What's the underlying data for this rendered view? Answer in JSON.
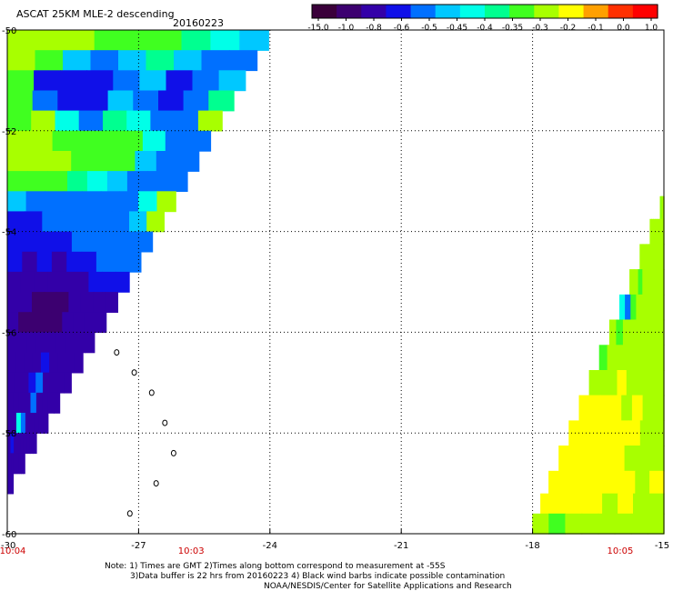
{
  "header": {
    "title": "ASCAT 25KM MLE-2 descending",
    "date": "20160223"
  },
  "colorbar": {
    "tick_labels": [
      "-15.0",
      "-1.0",
      "-0.8",
      "-0.6",
      "-0.5",
      "-0.45",
      "-0.4",
      "-0.35",
      "-0.3",
      "-0.2",
      "-0.1",
      "0.0",
      "1.0"
    ],
    "stops": [
      "#3a003a",
      "#3c0070",
      "#3300a8",
      "#1010e8",
      "#0070ff",
      "#00c8ff",
      "#00ffe8",
      "#00ff90",
      "#40ff20",
      "#a8ff00",
      "#ffff00",
      "#ffa000",
      "#ff3000",
      "#ff0000"
    ]
  },
  "chart_data": {
    "type": "heatmap",
    "title": "ASCAT 25KM MLE-2 descending",
    "subtitle": "20160223",
    "x_ticks": [
      "-27",
      "-24",
      "-21",
      "-18",
      "-15"
    ],
    "x_tick_values": [
      -27,
      -24,
      -21,
      -18,
      -15
    ],
    "y_ticks": [
      "-50",
      "-52",
      "-54",
      "-56",
      "-58",
      "-60"
    ],
    "y_tick_values": [
      -50,
      -52,
      -54,
      -56,
      -58,
      -60
    ],
    "x_range": [
      -30,
      -15
    ],
    "y_range": [
      -60,
      -50
    ],
    "grid": true,
    "x_corner_label": "-30",
    "time_labels": [
      {
        "label": "10:04",
        "lon": -30
      },
      {
        "label": "10:03",
        "lon": -25.8
      },
      {
        "label": "10:05",
        "lon": -16
      }
    ],
    "swath_west": {
      "lon_edge_top": -23.9,
      "lat_top": -50,
      "lat_bottom": -59.2,
      "lon_edge_bottom": -30,
      "rows": [
        {
          "lat": -50.2,
          "levels": [
            "-0.3",
            "-0.3",
            "-0.3",
            "-0.35",
            "-0.35",
            "-0.35",
            "-0.4",
            "-0.45",
            "-0.5"
          ]
        },
        {
          "lat": -50.6,
          "levels": [
            "-0.3",
            "-0.35",
            "-0.5",
            "-0.6",
            "-0.5",
            "-0.4",
            "-0.5",
            "-0.6",
            "-0.6"
          ]
        },
        {
          "lat": -51.0,
          "levels": [
            "-0.35",
            "-0.8",
            "-0.8",
            "-0.8",
            "-0.6",
            "-0.5",
            "-0.8",
            "-0.6",
            "-0.5"
          ]
        },
        {
          "lat": -51.4,
          "levels": [
            "-0.35",
            "-0.6",
            "-0.8",
            "-0.8",
            "-0.5",
            "-0.6",
            "-0.8",
            "-0.6",
            "-0.4"
          ]
        },
        {
          "lat": -51.8,
          "levels": [
            "-0.35",
            "-0.3",
            "-0.45",
            "-0.6",
            "-0.4",
            "-0.45",
            "-0.6",
            "-0.6",
            "-0.3"
          ]
        },
        {
          "lat": -52.2,
          "levels": [
            "-0.3",
            "-0.3",
            "-0.35",
            "-0.35",
            "-0.35",
            "-0.35",
            "-0.45",
            "-0.6",
            "-0.6"
          ]
        },
        {
          "lat": -52.6,
          "levels": [
            "-0.3",
            "-0.3",
            "-0.3",
            "-0.35",
            "-0.35",
            "-0.35",
            "-0.5",
            "-0.6",
            "-0.6"
          ]
        },
        {
          "lat": -53.0,
          "levels": [
            "-0.35",
            "-0.35",
            "-0.35",
            "-0.4",
            "-0.45",
            "-0.5",
            "-0.6",
            "-0.6",
            "-0.6"
          ]
        },
        {
          "lat": -53.4,
          "levels": [
            "-0.5",
            "-0.6",
            "-0.6",
            "-0.6",
            "-0.6",
            "-0.6",
            "-0.6",
            "-0.45",
            "-0.3"
          ]
        },
        {
          "lat": -53.8,
          "levels": [
            "-0.8",
            "-0.8",
            "-0.6",
            "-0.6",
            "-0.6",
            "-0.6",
            "-0.6",
            "-0.5",
            "-0.3"
          ]
        },
        {
          "lat": -54.2,
          "levels": [
            "-0.8",
            "-0.8",
            "-0.8",
            "-0.8",
            "-0.6",
            "-0.6",
            "-0.6",
            "-0.6",
            "-0.6"
          ]
        },
        {
          "lat": -54.6,
          "levels": [
            "-0.8",
            "-1.0",
            "-0.8",
            "-1.0",
            "-0.8",
            "-0.8",
            "-0.6",
            "-0.6",
            "-0.6"
          ]
        },
        {
          "lat": -55.0,
          "levels": [
            "-1.0",
            "-1.0",
            "-1.0",
            "-1.0",
            "-1.0",
            "-1.0",
            "-0.8",
            "-0.8",
            "-0.8"
          ]
        },
        {
          "lat": -55.4,
          "levels": [
            "-1.0",
            "-1.0",
            "-15.0",
            "-15.0",
            "-15.0",
            "-1.0",
            "-1.0",
            "-1.0",
            "-1.0"
          ]
        },
        {
          "lat": -55.8,
          "levels": [
            "-1.0",
            "-15.0",
            "-15.0",
            "-15.0",
            "-15.0",
            "-1.0",
            "-1.0",
            "-1.0",
            "-1.0"
          ]
        },
        {
          "lat": -56.2,
          "levels": [
            "-1.0",
            "-1.0",
            "-1.0",
            "-1.0",
            "-1.0",
            "-1.0",
            "-1.0",
            "-1.0",
            "-1.0"
          ]
        },
        {
          "lat": -56.6,
          "levels": [
            "-1.0",
            "-1.0",
            "-1.0",
            "-1.0",
            "-0.8",
            "-1.0",
            "-1.0",
            "-1.0",
            "-1.0"
          ]
        },
        {
          "lat": -57.0,
          "levels": [
            "-1.0",
            "-1.0",
            "-1.0",
            "-0.8",
            "-0.6",
            "-1.0",
            "-1.0",
            "-1.0",
            "-1.0"
          ]
        },
        {
          "lat": -57.4,
          "levels": [
            "-1.0",
            "-1.0",
            "-1.0",
            "-1.0",
            "-0.6",
            "-1.0",
            "-1.0",
            "-1.0",
            "-1.0"
          ]
        },
        {
          "lat": -57.8,
          "levels": [
            "-1.0",
            "-1.0",
            "-0.45",
            "-0.6",
            "-1.0",
            "-1.0",
            "-1.0",
            "-1.0",
            "-1.0"
          ]
        },
        {
          "lat": -58.2,
          "levels": [
            "-1.0",
            "-0.8",
            "-1.0",
            "-1.0",
            "-1.0",
            "-1.0",
            "-1.0",
            "-1.0",
            "-1.0"
          ]
        },
        {
          "lat": -58.6,
          "levels": [
            "-1.0",
            "-1.0",
            "-1.0",
            "-1.0",
            "-1.0",
            "-1.0",
            "-1.0",
            "-1.0",
            "-1.0"
          ]
        },
        {
          "lat": -59.0,
          "levels": [
            "-1.0",
            "-1.0",
            "-1.0",
            "-1.0",
            "-1.0",
            "-1.0",
            "-1.0",
            "-1.0",
            "-1.0"
          ]
        }
      ]
    },
    "swath_east": {
      "lon_edge_top": -15,
      "lat_top": -53.3,
      "lat_bottom": -60,
      "lon_edge_bottom": -18.1,
      "rows": [
        {
          "lat": -53.5,
          "levels": [
            "-0.3",
            "-0.3",
            "-0.35",
            "-0.3",
            "-0.3",
            "-0.3",
            "-0.3",
            "-0.3"
          ]
        },
        {
          "lat": -54.0,
          "levels": [
            "-0.3",
            "-0.3",
            "-0.3",
            "-0.3",
            "-0.3",
            "-0.3",
            "-0.3",
            "-0.3"
          ]
        },
        {
          "lat": -54.5,
          "levels": [
            "-0.3",
            "-0.3",
            "-0.3",
            "-0.3",
            "-0.3",
            "-0.3",
            "-0.3",
            "-0.3"
          ]
        },
        {
          "lat": -55.0,
          "levels": [
            "-0.3",
            "-0.3",
            "-0.35",
            "-0.3",
            "-0.3",
            "-0.3",
            "-0.3",
            "-0.3"
          ]
        },
        {
          "lat": -55.5,
          "levels": [
            "-0.45",
            "-0.6",
            "-0.35",
            "-0.3",
            "-0.3",
            "-0.3",
            "-0.3",
            "-0.3"
          ]
        },
        {
          "lat": -56.0,
          "levels": [
            "-0.3",
            "-0.35",
            "-0.3",
            "-0.3",
            "-0.3",
            "-0.3",
            "-0.3",
            "-0.3"
          ]
        },
        {
          "lat": -56.5,
          "levels": [
            "-0.35",
            "-0.3",
            "-0.3",
            "-0.3",
            "-0.3",
            "-0.3",
            "-0.3",
            "-0.3"
          ]
        },
        {
          "lat": -57.0,
          "levels": [
            "-0.3",
            "-0.3",
            "-0.3",
            "-0.2",
            "-0.3",
            "-0.3",
            "-0.3",
            "-0.3"
          ]
        },
        {
          "lat": -57.5,
          "levels": [
            "-0.2",
            "-0.2",
            "-0.2",
            "-0.2",
            "-0.3",
            "-0.2",
            "-0.3",
            "-0.3"
          ]
        },
        {
          "lat": -58.0,
          "levels": [
            "-0.2",
            "-0.2",
            "-0.2",
            "-0.2",
            "-0.2",
            "-0.2",
            "-0.3",
            "-0.3"
          ]
        },
        {
          "lat": -58.5,
          "levels": [
            "-0.2",
            "-0.2",
            "-0.2",
            "-0.2",
            "-0.2",
            "-0.3",
            "-0.3",
            "-0.3"
          ]
        },
        {
          "lat": -59.0,
          "levels": [
            "-0.2",
            "-0.2",
            "-0.2",
            "-0.2",
            "-0.2",
            "-0.2",
            "-0.3",
            "-0.2"
          ]
        },
        {
          "lat": -59.4,
          "levels": [
            "-0.2",
            "-0.2",
            "-0.2",
            "-0.2",
            "-0.3",
            "-0.2",
            "-0.3",
            "-0.3"
          ]
        },
        {
          "lat": -59.8,
          "levels": [
            "-0.3",
            "-0.35",
            "-0.3",
            "-0.3",
            "-0.3",
            "-0.3",
            "-0.3",
            "-0.3"
          ]
        }
      ]
    },
    "islands": [
      {
        "lon": -27.5,
        "lat": -56.4
      },
      {
        "lon": -27.1,
        "lat": -56.8
      },
      {
        "lon": -26.7,
        "lat": -57.2
      },
      {
        "lon": -26.4,
        "lat": -57.8
      },
      {
        "lon": -26.2,
        "lat": -58.4
      },
      {
        "lon": -26.6,
        "lat": -59.0
      },
      {
        "lon": -27.2,
        "lat": -59.6
      }
    ]
  },
  "footer": {
    "line1": "Note: 1) Times are GMT 2)Times along bottom correspond to measurement at -55S",
    "line2": "3)Data buffer is 22 hrs from 20160223 4) Black wind barbs indicate possible contamination",
    "line3": "NOAA/NESDIS/Center for Satellite Applications and Research"
  }
}
